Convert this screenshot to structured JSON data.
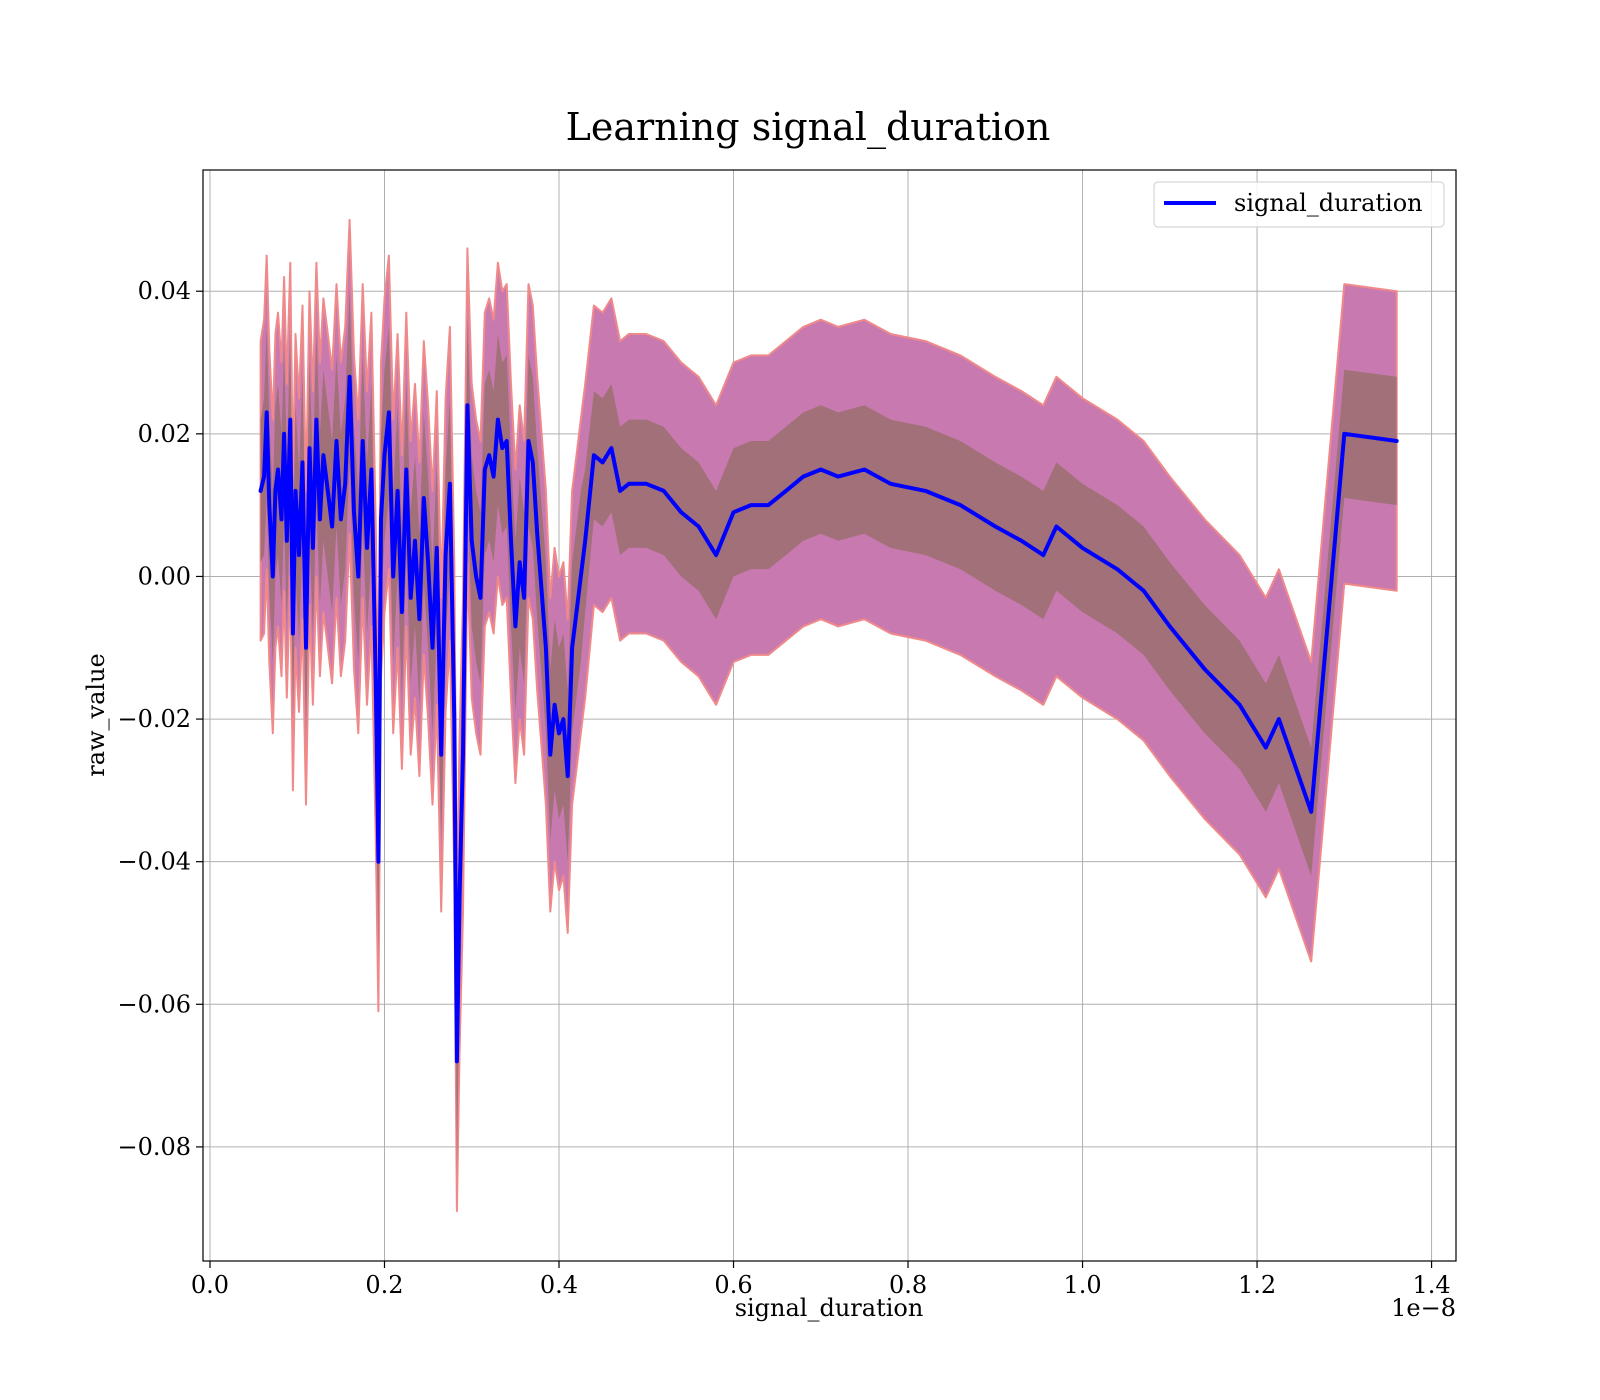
{
  "chart_data": {
    "type": "line",
    "title": "Learning signal_duration",
    "xlabel": "signal_duration",
    "ylabel": "raw_value",
    "x_offset_text": "1e−8",
    "xlim": [
      -0.008,
      1.428
    ],
    "ylim": [
      -0.096,
      0.057
    ],
    "x_ticks": [
      0.0,
      0.2,
      0.4,
      0.6,
      0.8,
      1.0,
      1.2,
      1.4
    ],
    "x_tick_labels": [
      "0.0",
      "0.2",
      "0.4",
      "0.6",
      "0.8",
      "1.0",
      "1.2",
      "1.4"
    ],
    "y_ticks": [
      0.04,
      0.02,
      0.0,
      -0.02,
      -0.04,
      -0.06,
      -0.08
    ],
    "y_tick_labels": [
      "0.04",
      "0.02",
      "0.00",
      "−0.02",
      "−0.04",
      "−0.06",
      "−0.08"
    ],
    "grid": true,
    "legend_position": "top-right",
    "series": [
      {
        "name": "signal_duration",
        "color": "#0000ff",
        "x": [
          0.058,
          0.062,
          0.065,
          0.068,
          0.072,
          0.075,
          0.078,
          0.082,
          0.085,
          0.088,
          0.092,
          0.095,
          0.098,
          0.102,
          0.106,
          0.11,
          0.114,
          0.118,
          0.122,
          0.126,
          0.13,
          0.135,
          0.14,
          0.145,
          0.15,
          0.155,
          0.16,
          0.165,
          0.17,
          0.175,
          0.18,
          0.185,
          0.19,
          0.193,
          0.196,
          0.2,
          0.205,
          0.21,
          0.215,
          0.22,
          0.225,
          0.23,
          0.235,
          0.24,
          0.245,
          0.25,
          0.255,
          0.26,
          0.265,
          0.27,
          0.275,
          0.28,
          0.283,
          0.286,
          0.29,
          0.295,
          0.3,
          0.305,
          0.31,
          0.315,
          0.32,
          0.325,
          0.33,
          0.335,
          0.34,
          0.345,
          0.35,
          0.355,
          0.36,
          0.365,
          0.37,
          0.375,
          0.38,
          0.385,
          0.39,
          0.395,
          0.4,
          0.405,
          0.41,
          0.415,
          0.42,
          0.425,
          0.43,
          0.44,
          0.45,
          0.46,
          0.47,
          0.48,
          0.5,
          0.52,
          0.54,
          0.56,
          0.575,
          0.58,
          0.6,
          0.62,
          0.64,
          0.66,
          0.68,
          0.7,
          0.72,
          0.75,
          0.78,
          0.82,
          0.86,
          0.9,
          0.93,
          0.955,
          0.97,
          1.0,
          1.04,
          1.07,
          1.1,
          1.14,
          1.18,
          1.21,
          1.225,
          1.262,
          1.3,
          1.36
        ],
        "y": [
          0.012,
          0.014,
          0.023,
          0.01,
          0.0,
          0.012,
          0.015,
          0.008,
          0.02,
          0.005,
          0.022,
          -0.008,
          0.012,
          0.003,
          0.016,
          -0.01,
          0.018,
          0.004,
          0.022,
          0.008,
          0.017,
          0.012,
          0.007,
          0.019,
          0.008,
          0.013,
          0.028,
          0.009,
          0.0,
          0.019,
          0.004,
          0.015,
          -0.015,
          -0.04,
          0.008,
          0.017,
          0.023,
          0.0,
          0.012,
          -0.005,
          0.015,
          -0.003,
          0.005,
          -0.006,
          0.011,
          0.002,
          -0.01,
          0.004,
          -0.025,
          0.003,
          0.013,
          -0.02,
          -0.068,
          -0.045,
          -0.025,
          0.024,
          0.005,
          0.0,
          -0.003,
          0.015,
          0.017,
          0.014,
          0.022,
          0.018,
          0.019,
          0.005,
          -0.007,
          0.002,
          -0.003,
          0.019,
          0.016,
          0.006,
          -0.002,
          -0.01,
          -0.025,
          -0.018,
          -0.022,
          -0.02,
          -0.028,
          -0.01,
          -0.005,
          0.0,
          0.005,
          0.017,
          0.016,
          0.018,
          0.012,
          0.013,
          0.013,
          0.012,
          0.009,
          0.007,
          0.004,
          0.003,
          0.009,
          0.01,
          0.01,
          0.012,
          0.014,
          0.015,
          0.014,
          0.015,
          0.013,
          0.012,
          0.01,
          0.007,
          0.005,
          0.003,
          0.007,
          0.004,
          0.001,
          -0.002,
          -0.007,
          -0.013,
          -0.018,
          -0.024,
          -0.02,
          -0.033,
          0.02,
          0.019
        ],
        "band_inner_halfwidth": [
          0.01,
          0.011,
          0.012,
          0.012,
          0.012,
          0.012,
          0.012,
          0.012,
          0.012,
          0.012,
          0.012,
          0.012,
          0.012,
          0.012,
          0.012,
          0.012,
          0.012,
          0.012,
          0.012,
          0.012,
          0.012,
          0.012,
          0.012,
          0.012,
          0.012,
          0.012,
          0.012,
          0.012,
          0.012,
          0.012,
          0.012,
          0.012,
          0.012,
          0.014,
          0.012,
          0.012,
          0.012,
          0.012,
          0.012,
          0.012,
          0.012,
          0.012,
          0.012,
          0.012,
          0.012,
          0.012,
          0.012,
          0.012,
          0.012,
          0.012,
          0.012,
          0.012,
          0.016,
          0.012,
          0.012,
          0.012,
          0.012,
          0.012,
          0.012,
          0.012,
          0.012,
          0.012,
          0.012,
          0.012,
          0.012,
          0.012,
          0.012,
          0.012,
          0.012,
          0.012,
          0.012,
          0.012,
          0.012,
          0.012,
          0.012,
          0.012,
          0.012,
          0.012,
          0.012,
          0.012,
          0.012,
          0.012,
          0.01,
          0.009,
          0.009,
          0.009,
          0.009,
          0.009,
          0.009,
          0.009,
          0.009,
          0.009,
          0.009,
          0.009,
          0.009,
          0.009,
          0.009,
          0.009,
          0.009,
          0.009,
          0.009,
          0.009,
          0.009,
          0.009,
          0.009,
          0.009,
          0.009,
          0.009,
          0.009,
          0.009,
          0.009,
          0.009,
          0.009,
          0.009,
          0.009,
          0.009,
          0.009,
          0.009,
          0.009,
          0.009
        ],
        "band_outer_halfwidth": [
          0.021,
          0.022,
          0.022,
          0.022,
          0.022,
          0.022,
          0.022,
          0.022,
          0.022,
          0.022,
          0.022,
          0.022,
          0.022,
          0.022,
          0.022,
          0.022,
          0.022,
          0.022,
          0.022,
          0.022,
          0.022,
          0.022,
          0.022,
          0.022,
          0.022,
          0.022,
          0.022,
          0.022,
          0.022,
          0.022,
          0.022,
          0.022,
          0.022,
          0.021,
          0.022,
          0.022,
          0.022,
          0.022,
          0.022,
          0.022,
          0.022,
          0.022,
          0.022,
          0.022,
          0.022,
          0.022,
          0.022,
          0.022,
          0.022,
          0.022,
          0.022,
          0.022,
          0.021,
          0.022,
          0.022,
          0.022,
          0.022,
          0.022,
          0.022,
          0.022,
          0.022,
          0.022,
          0.022,
          0.022,
          0.022,
          0.022,
          0.022,
          0.022,
          0.022,
          0.022,
          0.022,
          0.022,
          0.022,
          0.022,
          0.022,
          0.022,
          0.022,
          0.022,
          0.022,
          0.022,
          0.022,
          0.022,
          0.022,
          0.021,
          0.021,
          0.021,
          0.021,
          0.021,
          0.021,
          0.021,
          0.021,
          0.021,
          0.021,
          0.021,
          0.021,
          0.021,
          0.021,
          0.021,
          0.021,
          0.021,
          0.021,
          0.021,
          0.021,
          0.021,
          0.021,
          0.021,
          0.021,
          0.021,
          0.021,
          0.021,
          0.021,
          0.021,
          0.021,
          0.021,
          0.021,
          0.021,
          0.021,
          0.021,
          0.021,
          0.021
        ]
      }
    ],
    "colors": {
      "line": "#0000ff",
      "band_outer": "#c87ab0",
      "band_outer_edge": "#f08a8a",
      "band_inner": "#a07076",
      "grid": "#b0b0b0"
    }
  }
}
